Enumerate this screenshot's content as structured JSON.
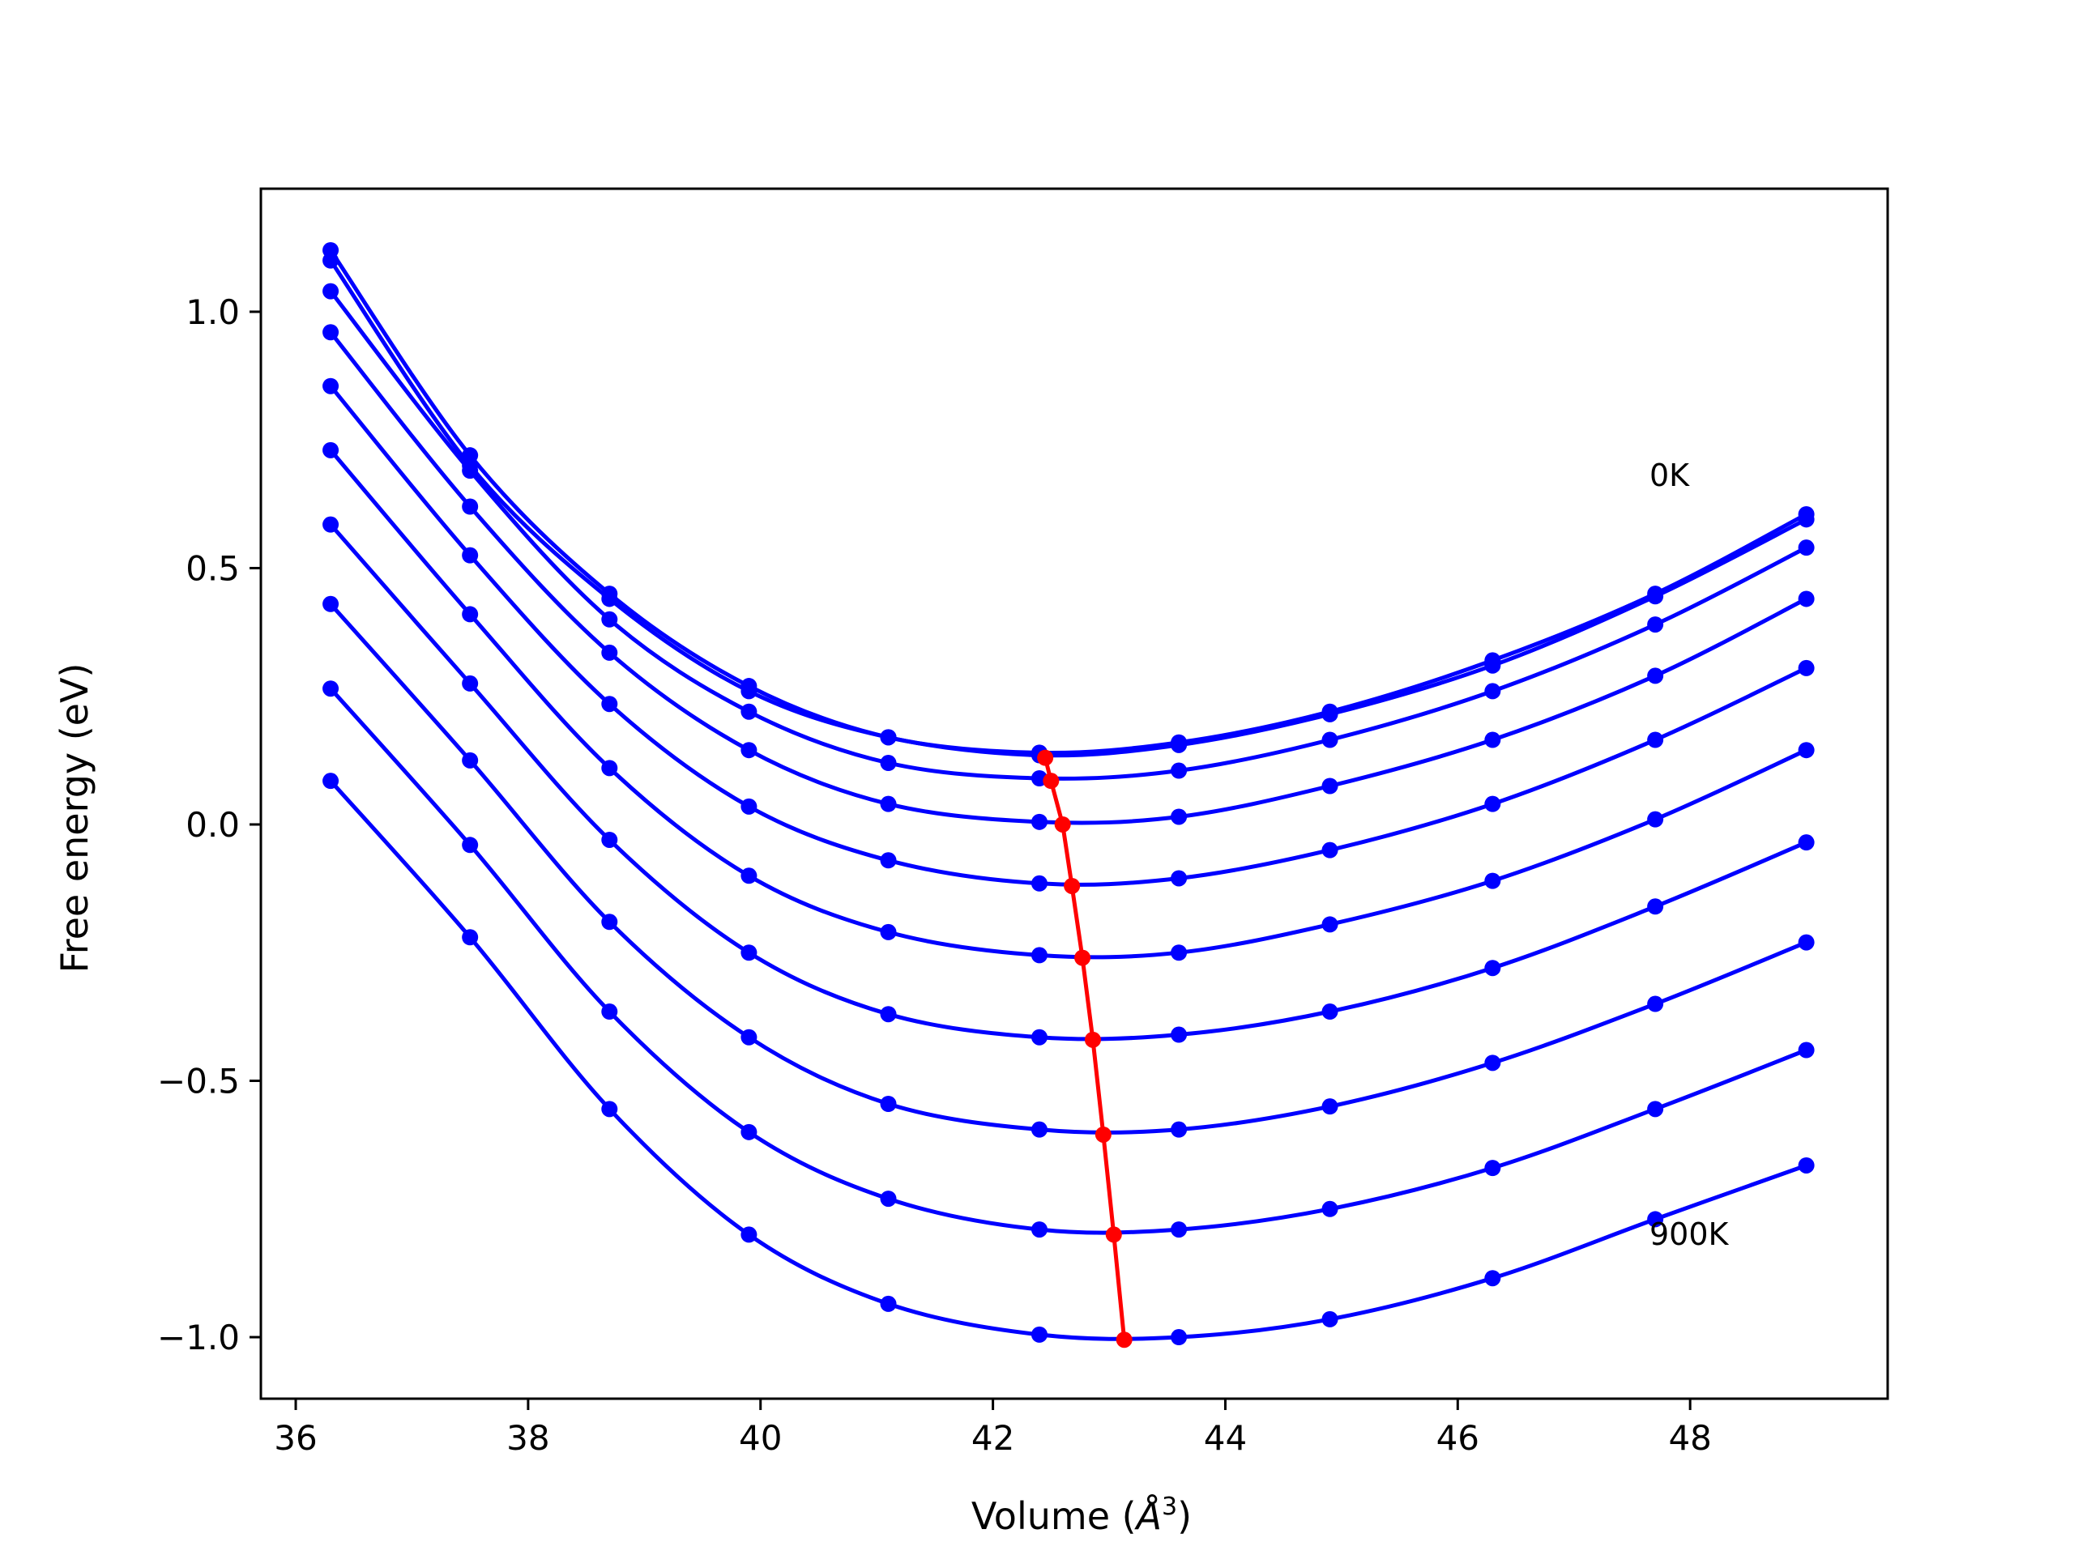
{
  "chart_data": {
    "type": "line",
    "xlabel_main": "Volume (",
    "xlabel_unit": "Å",
    "xlabel_exp": "3",
    "xlabel_close": ")",
    "ylabel": "Free energy (eV)",
    "xlim": [
      35.7,
      49.7
    ],
    "ylim": [
      -1.12,
      1.24
    ],
    "x_ticks": [
      36,
      38,
      40,
      42,
      44,
      46,
      48
    ],
    "x_tick_labels": [
      "36",
      "38",
      "40",
      "42",
      "44",
      "46",
      "48"
    ],
    "y_ticks": [
      -1.0,
      -0.5,
      0.0,
      0.5,
      1.0
    ],
    "y_tick_labels": [
      "−1.0",
      "−0.5",
      "0.0",
      "0.5",
      "1.0"
    ],
    "grid": false,
    "series_color": "#0000ff",
    "min_color": "#ff0000",
    "x": [
      36.3,
      37.5,
      38.7,
      39.9,
      41.1,
      42.4,
      43.6,
      44.9,
      46.3,
      47.7,
      49.0
    ],
    "series": [
      {
        "label": "0K",
        "values": [
          1.12,
          0.72,
          0.45,
          0.27,
          0.17,
          0.14,
          0.16,
          0.22,
          0.32,
          0.45,
          0.605
        ]
      },
      {
        "values": [
          1.1,
          0.7,
          0.44,
          0.26,
          0.17,
          0.135,
          0.155,
          0.215,
          0.31,
          0.445,
          0.595
        ]
      },
      {
        "values": [
          1.04,
          0.69,
          0.4,
          0.22,
          0.12,
          0.09,
          0.105,
          0.165,
          0.26,
          0.39,
          0.54
        ]
      },
      {
        "values": [
          0.96,
          0.62,
          0.335,
          0.145,
          0.04,
          0.005,
          0.015,
          0.075,
          0.165,
          0.29,
          0.44
        ]
      },
      {
        "values": [
          0.855,
          0.525,
          0.235,
          0.035,
          -0.07,
          -0.115,
          -0.105,
          -0.05,
          0.04,
          0.165,
          0.305
        ]
      },
      {
        "values": [
          0.73,
          0.41,
          0.11,
          -0.1,
          -0.21,
          -0.255,
          -0.25,
          -0.195,
          -0.11,
          0.01,
          0.145
        ]
      },
      {
        "values": [
          0.585,
          0.275,
          -0.03,
          -0.25,
          -0.37,
          -0.415,
          -0.41,
          -0.365,
          -0.28,
          -0.16,
          -0.035
        ]
      },
      {
        "values": [
          0.43,
          0.125,
          -0.19,
          -0.415,
          -0.545,
          -0.595,
          -0.595,
          -0.55,
          -0.465,
          -0.35,
          -0.23
        ]
      },
      {
        "values": [
          0.265,
          -0.04,
          -0.365,
          -0.6,
          -0.73,
          -0.79,
          -0.79,
          -0.75,
          -0.67,
          -0.555,
          -0.44
        ]
      },
      {
        "label": "900K",
        "values": [
          0.085,
          -0.22,
          -0.555,
          -0.8,
          -0.935,
          -0.995,
          -1.0,
          -0.965,
          -0.885,
          -0.77,
          -0.665
        ]
      }
    ],
    "minima": {
      "x": [
        42.45,
        42.5,
        42.6,
        42.68,
        42.77,
        42.86,
        42.95,
        43.04,
        43.13
      ],
      "y": [
        0.13,
        0.085,
        0.0,
        -0.12,
        -0.26,
        -0.42,
        -0.605,
        -0.8,
        -1.005
      ]
    },
    "annotations": [
      {
        "text": "0K",
        "x": 47.65,
        "y": 0.66
      },
      {
        "text": "900K",
        "x": 47.65,
        "y": -0.82
      }
    ]
  }
}
